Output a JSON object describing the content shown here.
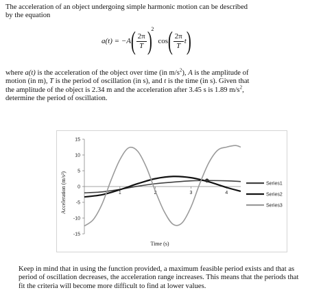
{
  "intro": {
    "line1": "The acceleration of an object undergoing simple harmonic motion can be described",
    "line2": "by the equation"
  },
  "equation": {
    "lhs": "a(t) = −A",
    "num1": "2π",
    "den1": "T",
    "exponent": "2",
    "func": "cos",
    "num2": "2π",
    "den2": "T",
    "var": "t"
  },
  "where": {
    "l1a": "where ",
    "l1b": "a(t)",
    "l1c": " is the acceleration of the object over time (in m/s",
    "l1d": "2",
    "l1e": "), ",
    "l1f": "A",
    "l1g": " is the amplitude of",
    "l2a": "motion (in m), ",
    "l2b": "T",
    "l2c": " is the period of oscillation (in s), and ",
    "l2d": "t",
    "l2e": " is the time (in s). Given that",
    "l3a": "the amplitude of the object is 2.34 m and the acceleration after 3.45 s is 1.89 m/s",
    "l3b": "2",
    "l3c": ",",
    "l4": "determine the period of oscillation."
  },
  "note": {
    "line1": "Keep in mind that in using the function provided, a maximum feasible period exists and that as",
    "line2": "period of oscillation decreases, the acceleration range increases. This means that the periods that",
    "line3": "fit the criteria will become more difficult to find at lower values."
  },
  "chart_data": {
    "type": "line",
    "xlabel": "Time (s)",
    "ylabel": "Acceleration (m/s²)",
    "ylim": [
      -15,
      15
    ],
    "xlim": [
      0,
      4.4
    ],
    "y_ticks": [
      15,
      10,
      5,
      0,
      -5,
      -10,
      -15
    ],
    "x_ticks": [
      1,
      2,
      3,
      4
    ],
    "legend_position": "right",
    "series": [
      {
        "name": "Series1",
        "color": "#404040",
        "x": [
          0,
          0.5,
          1,
          1.5,
          2,
          2.5,
          3,
          3.5,
          4,
          4.4
        ],
        "y": [
          -2.0,
          -1.7,
          -0.9,
          0.1,
          0.9,
          1.4,
          1.8,
          1.9,
          1.8,
          1.6
        ]
      },
      {
        "name": "Series2",
        "color": "#111111",
        "x": [
          0,
          0.5,
          1,
          1.5,
          2,
          2.5,
          3,
          3.5,
          4,
          4.4
        ],
        "y": [
          -3.3,
          -2.6,
          -1.0,
          0.9,
          2.5,
          3.2,
          2.8,
          1.5,
          -0.3,
          -1.5
        ]
      },
      {
        "name": "Series3",
        "color": "#9a9a9a",
        "x": [
          0,
          0.25,
          0.5,
          0.75,
          1,
          1.25,
          1.5,
          1.75,
          2,
          2.25,
          2.5,
          2.75,
          3,
          3.25,
          3.5,
          3.75,
          4,
          4.25,
          4.4
        ],
        "y": [
          -12.5,
          -10.5,
          -5.5,
          2.0,
          8.5,
          12.3,
          11.2,
          6.0,
          -1.5,
          -8.0,
          -12.0,
          -11.5,
          -6.5,
          1.0,
          7.5,
          11.5,
          12.5,
          13.0,
          12.5
        ]
      }
    ]
  }
}
